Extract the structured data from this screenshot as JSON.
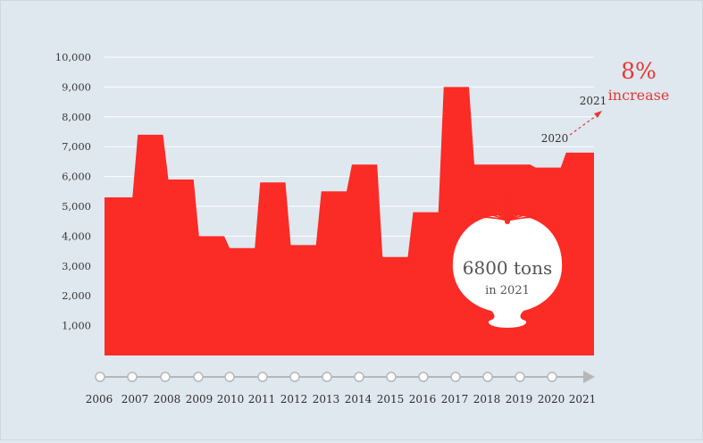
{
  "colors": {
    "background": "#dfe7ef",
    "area_fill": "#fb2b25",
    "grid": "#ffffff",
    "timeline": "#b7b7b7",
    "timeline_dot": "#ffffff",
    "accent_text": "#e53935",
    "bulb": "#ffffff",
    "bulb_text": "#555555"
  },
  "chart_data": {
    "type": "area",
    "step": true,
    "x": [
      2006,
      2007,
      2008,
      2009,
      2010,
      2011,
      2012,
      2013,
      2014,
      2015,
      2016,
      2017,
      2018,
      2019,
      2020,
      2021
    ],
    "values": [
      5300,
      7400,
      5900,
      4000,
      3600,
      5800,
      3700,
      5500,
      6400,
      3300,
      4800,
      9000,
      6400,
      6400,
      6300,
      6800
    ],
    "ylim": [
      0,
      10000
    ],
    "yticks": [
      "1,000",
      "2,000",
      "3,000",
      "4,000",
      "5,000",
      "6,000",
      "7,000",
      "8,000",
      "9,000",
      "10,000"
    ],
    "xticks": [
      "2006",
      "2007",
      "2008",
      "2009",
      "2010",
      "2011",
      "2012",
      "2013",
      "2014",
      "2015",
      "2016",
      "2017",
      "2018",
      "2019",
      "2020",
      "2021"
    ],
    "grid": true,
    "annotations": {
      "increase_value": "8%",
      "increase_label": "increase",
      "from_year": "2020",
      "to_year": "2021",
      "bulb_value": "6800 tons",
      "bulb_sub": "in 2021"
    }
  }
}
